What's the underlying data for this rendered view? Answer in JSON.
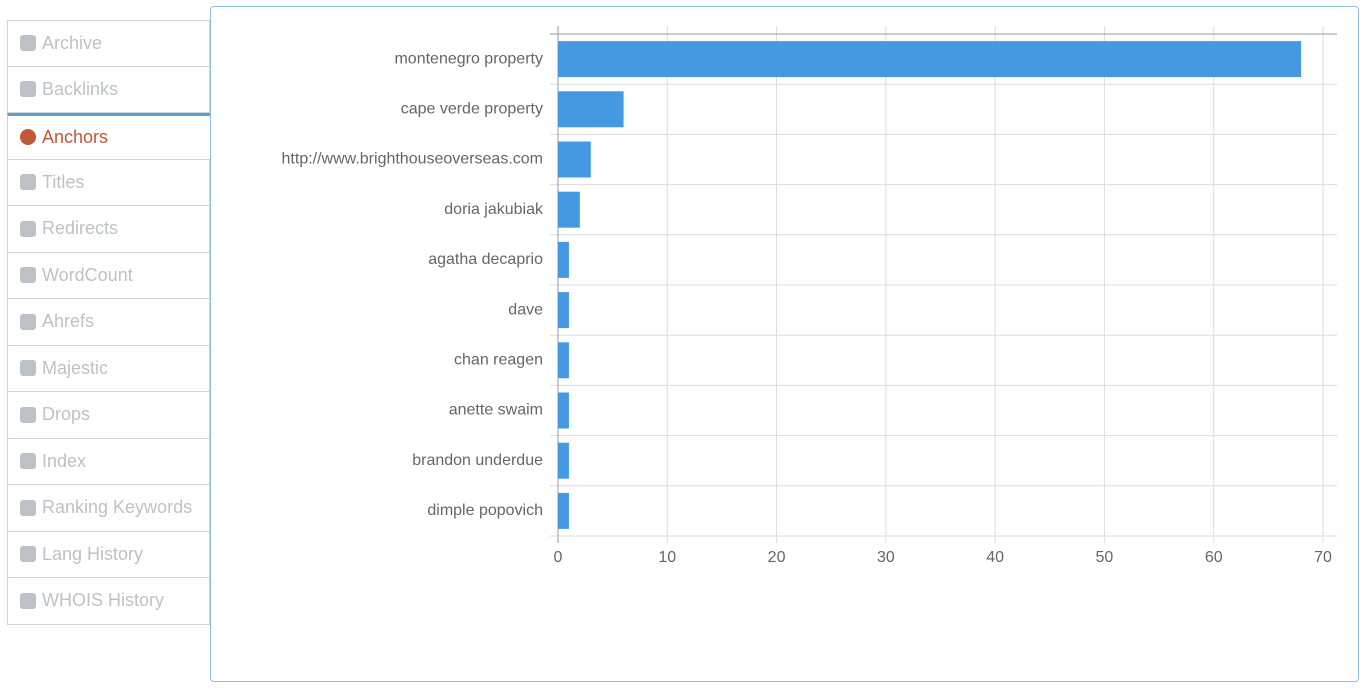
{
  "sidebar": {
    "items": [
      "Archive",
      "Backlinks",
      "Anchors",
      "Titles",
      "Redirects",
      "WordCount",
      "Ahrefs",
      "Majestic",
      "Drops",
      "Index",
      "Ranking Keywords",
      "Lang History",
      "WHOIS History"
    ],
    "active": "Anchors"
  },
  "chart_data": {
    "type": "bar",
    "orientation": "horizontal",
    "categories": [
      "montenegro property",
      "cape verde property",
      "http://www.brighthouseoverseas.com",
      "doria jakubiak",
      "agatha decaprio",
      "dave",
      "chan reagen",
      "anette swaim",
      "brandon underdue",
      "dimple popovich"
    ],
    "values": [
      68,
      6,
      3,
      2,
      1,
      1,
      1,
      1,
      1,
      1
    ],
    "color": "#4499e0",
    "xlim": [
      0,
      70
    ],
    "xticks": [
      0,
      10,
      20,
      30,
      40,
      50,
      60,
      70
    ],
    "grid": true
  }
}
